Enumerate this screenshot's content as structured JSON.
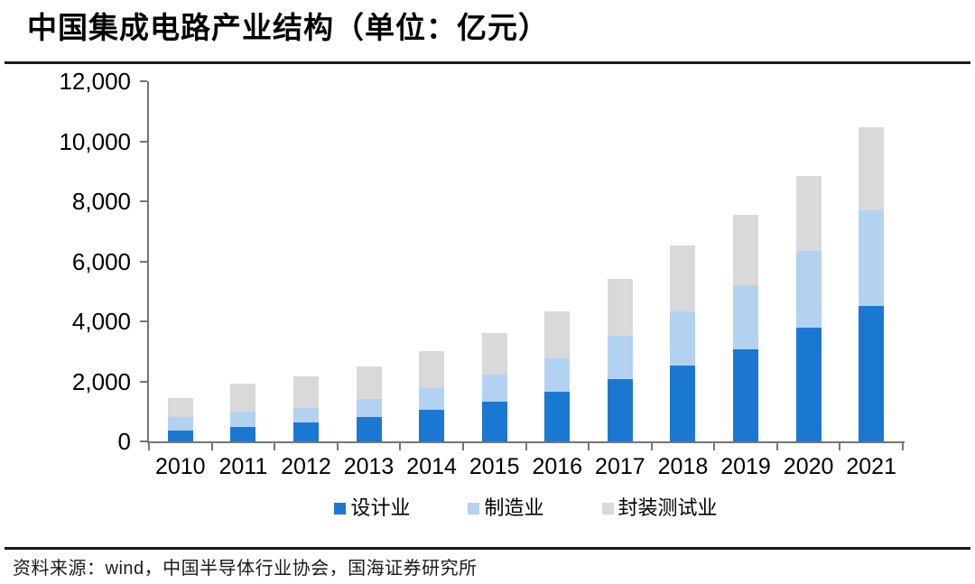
{
  "page": {
    "title": "中国集成电路产业结构（单位：亿元）",
    "source": "资料来源：wind，中国半导体行业协会，国海证券研究所"
  },
  "chart_data": {
    "type": "bar",
    "stacked": true,
    "title": "中国集成电路产业结构（单位：亿元）",
    "xlabel": "",
    "ylabel": "",
    "grid": false,
    "legend_position": "bottom",
    "categories": [
      "2010",
      "2011",
      "2012",
      "2013",
      "2014",
      "2015",
      "2016",
      "2017",
      "2018",
      "2019",
      "2020",
      "2021"
    ],
    "series": [
      {
        "name": "设计业",
        "color": "#1b78d2",
        "values": [
          363.9,
          473.7,
          621.7,
          808.8,
          1047.4,
          1325.0,
          1644.3,
          2073.5,
          2519.3,
          3063.5,
          3778.4,
          4519.0
        ]
      },
      {
        "name": "制造业",
        "color": "#b3d2f2",
        "values": [
          447.1,
          518.1,
          501.1,
          600.9,
          712.1,
          900.8,
          1126.9,
          1448.1,
          1818.2,
          2149.1,
          2560.1,
          3176.3
        ]
      },
      {
        "name": "封装测试业",
        "color": "#d9d9d9",
        "values": [
          629.2,
          941.8,
          1035.7,
          1098.8,
          1255.9,
          1384.0,
          1564.3,
          1889.7,
          2193.9,
          2349.7,
          2509.5,
          2763.0
        ]
      }
    ],
    "ylim": [
      0,
      12000
    ],
    "ytick_interval": 2000,
    "ytick_labels": [
      "0",
      "2,000",
      "4,000",
      "6,000",
      "8,000",
      "10,000",
      "12,000"
    ],
    "axis_color": "#757575"
  }
}
